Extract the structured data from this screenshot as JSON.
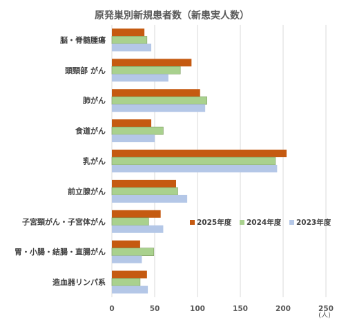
{
  "chart_data": {
    "type": "bar",
    "orientation": "horizontal",
    "title": "原発巣別新規患者数（新患実人数）",
    "unit_label": "(人)",
    "categories": [
      "脳・脊髄腫瘍",
      "頭頸部 がん",
      "肺がん",
      "食道がん",
      "乳がん",
      "前立腺がん",
      "子宮頸がん・子宮体がん",
      "胃・小腸・結腸・直腸がん",
      "造血器リンパ系"
    ],
    "series": [
      {
        "name": "2025年度",
        "color": "#c55a11",
        "values": [
          38,
          93,
          103,
          46,
          204,
          75,
          57,
          33,
          41
        ]
      },
      {
        "name": "2024年度",
        "color": "#a9d18e",
        "values": [
          41,
          80,
          111,
          60,
          191,
          77,
          43,
          49,
          33
        ]
      },
      {
        "name": "2023年度",
        "color": "#b4c7e7",
        "values": [
          46,
          66,
          109,
          50,
          193,
          88,
          60,
          35,
          42
        ]
      }
    ],
    "xlim": [
      0,
      250
    ],
    "xticks": [
      0,
      50,
      100,
      150,
      200,
      250
    ],
    "grid": true,
    "legend_position": "right"
  }
}
